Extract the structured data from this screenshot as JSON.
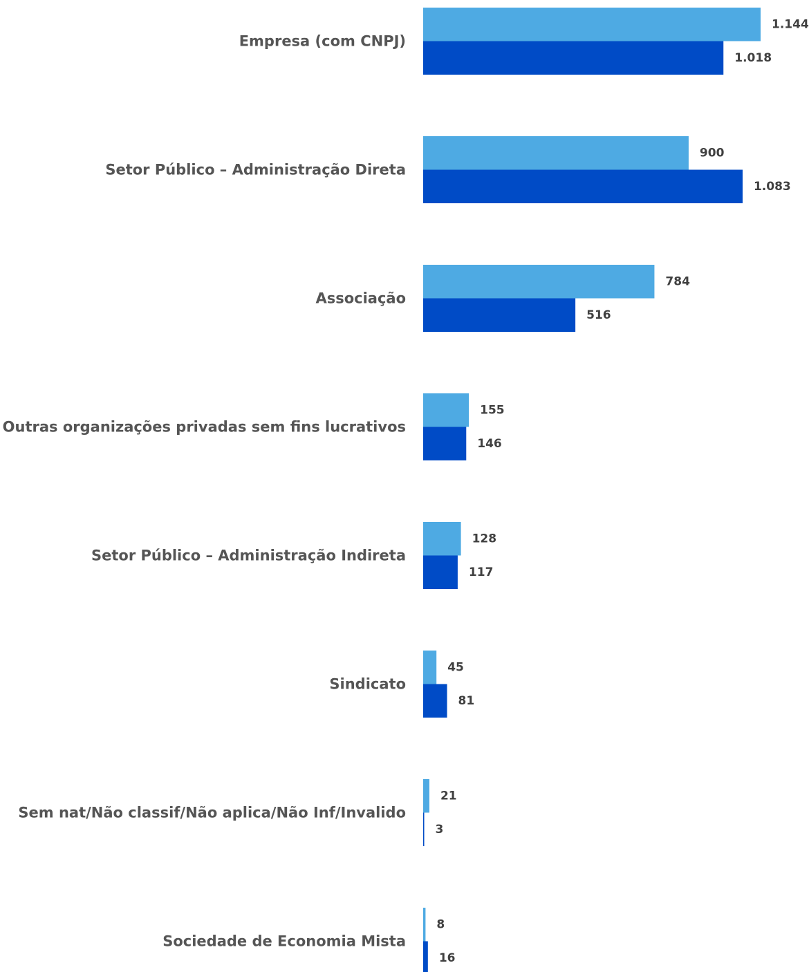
{
  "chart_data": {
    "type": "bar",
    "orientation": "horizontal",
    "categories": [
      "Empresa (com CNPJ)",
      "Setor Público – Administração Direta",
      "Associação",
      "Outras organizações privadas sem fins lucrativos",
      "Setor Público – Administração Indireta",
      "Sindicato",
      "Sem nat/Não classif/Não aplica/Não Inf/Invalido",
      "Sociedade de Economia Mista"
    ],
    "series": [
      {
        "color": "#4eaae3",
        "values": [
          1144,
          900,
          784,
          155,
          128,
          45,
          21,
          8
        ],
        "value_labels": [
          "1.144",
          "900",
          "784",
          "155",
          "128",
          "45",
          "21",
          "8"
        ]
      },
      {
        "color": "#004bc6",
        "values": [
          1018,
          1083,
          516,
          146,
          117,
          81,
          3,
          16
        ],
        "value_labels": [
          "1.018",
          "1.083",
          "516",
          "146",
          "117",
          "81",
          "3",
          "16"
        ]
      }
    ],
    "xlim": [
      0,
      1144
    ],
    "grid": false,
    "legend": "none",
    "data_labels": true
  }
}
